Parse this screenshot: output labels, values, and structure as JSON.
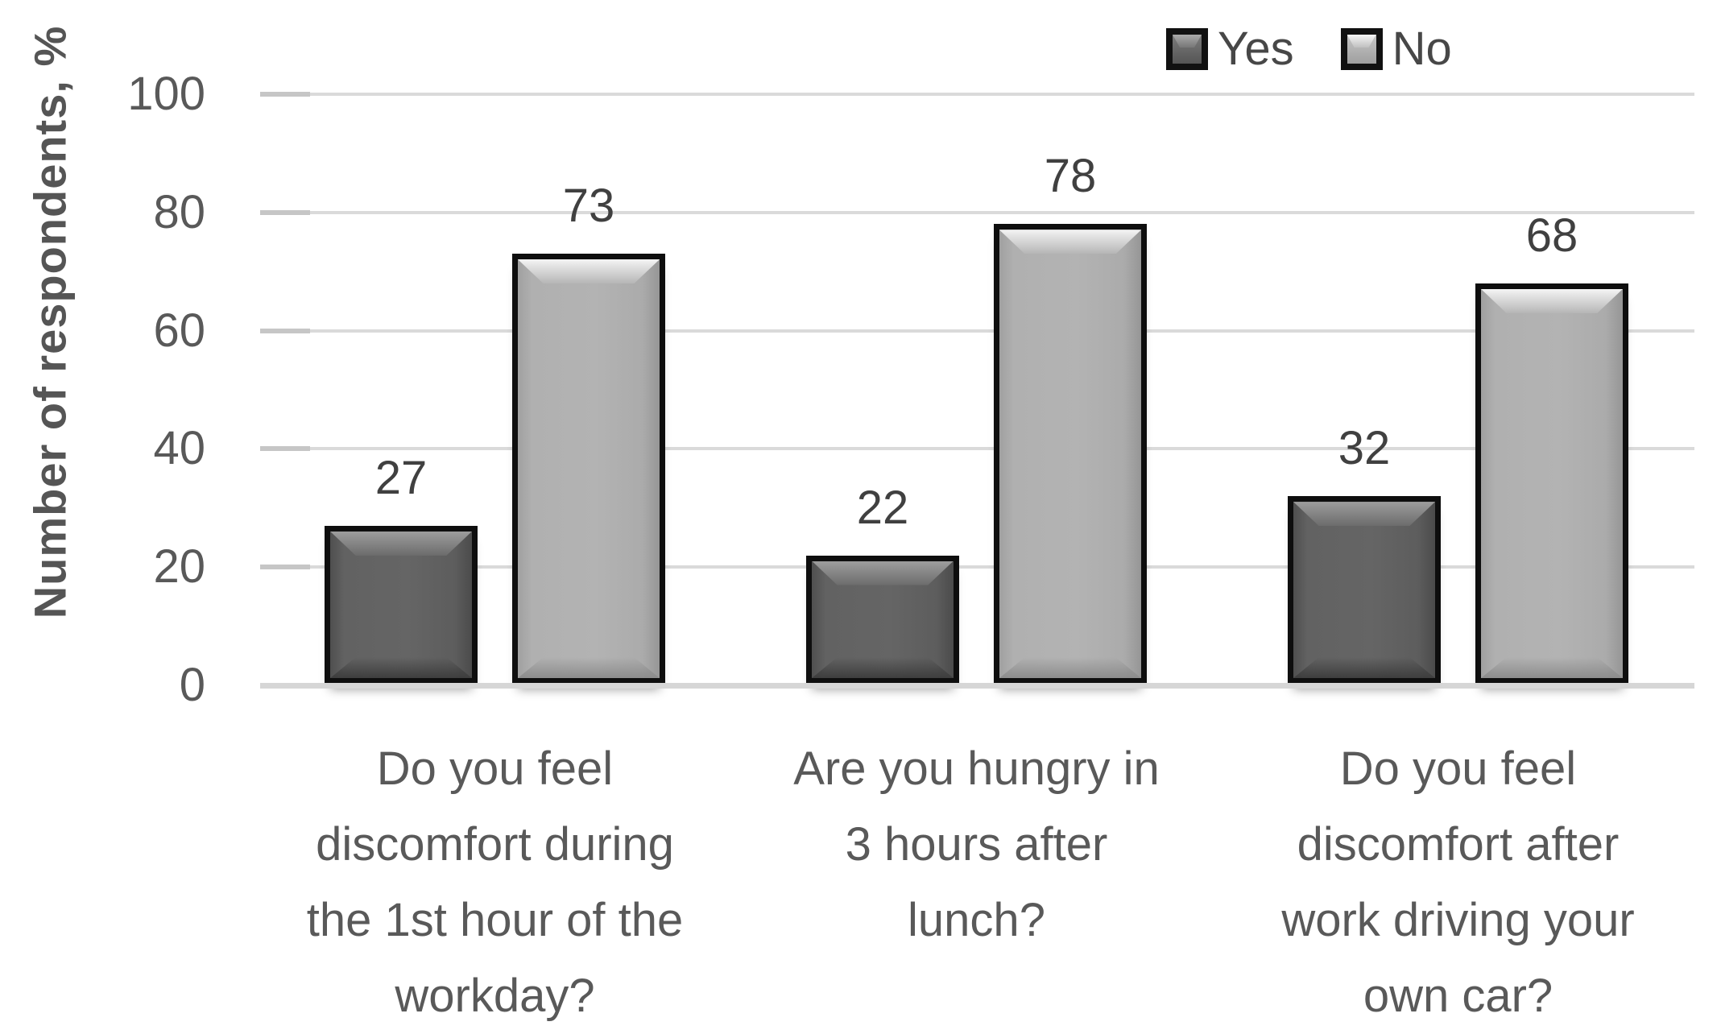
{
  "chart_data": {
    "type": "bar",
    "title": "",
    "xlabel": "",
    "ylabel": "Number of respondents, %",
    "ylim": [
      0,
      100
    ],
    "yticks": [
      0,
      20,
      40,
      60,
      80,
      100
    ],
    "grid": true,
    "legend_position": "top-right",
    "bar_value_labels_shown": true,
    "categories": [
      "Do you feel discomfort during the 1st hour of the workday?",
      "Are you hungry in 3 hours after lunch?",
      "Do you feel discomfort after work driving your own car?"
    ],
    "category_lines": [
      [
        "Do you feel",
        "discomfort during",
        "the 1st hour of the",
        "workday?"
      ],
      [
        "Are you hungry in",
        "3 hours after",
        "lunch?"
      ],
      [
        "Do you feel",
        "discomfort after",
        "work driving your",
        "own car?"
      ]
    ],
    "series": [
      {
        "name": "Yes",
        "values": [
          27,
          22,
          32
        ],
        "color": "#646464"
      },
      {
        "name": "No",
        "values": [
          73,
          78,
          68
        ],
        "color": "#b2b2b2"
      }
    ],
    "colors": {
      "bar_border": "#0e0e0e",
      "gridline": "#dadada",
      "text": "#595959",
      "value_label_text": "#404040"
    }
  }
}
